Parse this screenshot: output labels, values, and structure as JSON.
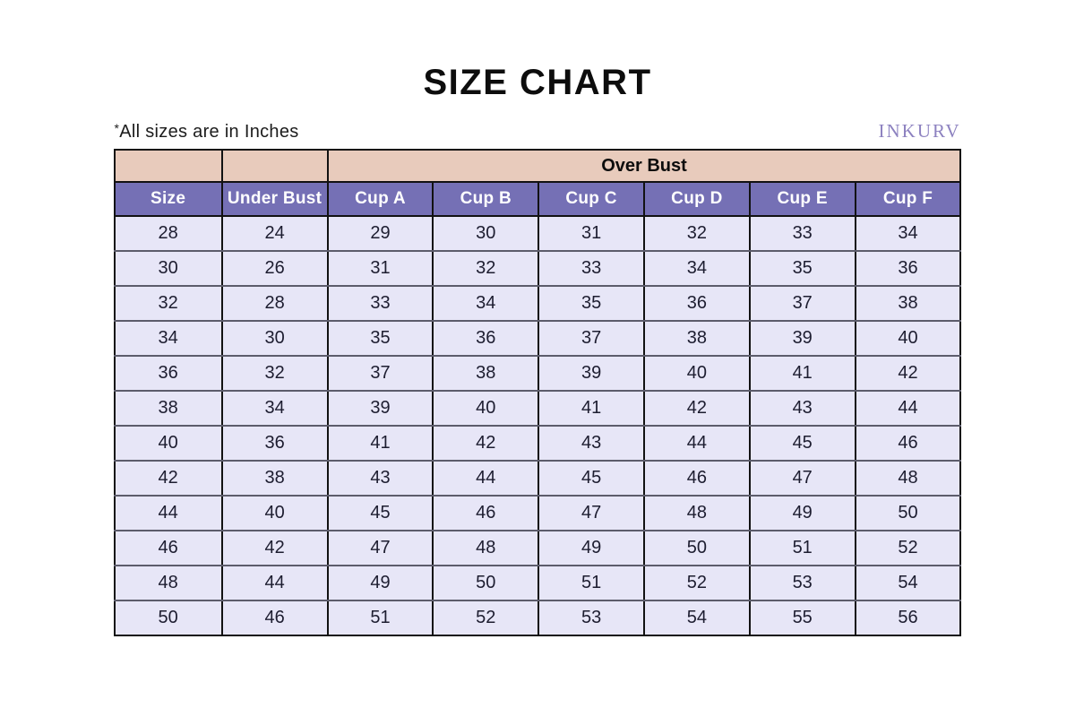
{
  "page": {
    "title": "SIZE CHART",
    "note_mark": "*",
    "note_text": "All sizes are in Inches",
    "brand": "INKURV"
  },
  "colors": {
    "group_header_bg": "#e8cbbc",
    "column_header_bg": "#7570b5",
    "column_header_text": "#ffffff",
    "cell_bg": "#e7e6f7",
    "brand_text": "#8d82c0",
    "vertical_border": "#121212",
    "row_separator": "#5c5c6b"
  },
  "chart_data": {
    "type": "table",
    "title": "SIZE CHART",
    "note": "*All sizes are in Inches",
    "brand": "INKURV",
    "group_header": {
      "label": "Over Bust",
      "spans_columns": [
        "Cup A",
        "Cup B",
        "Cup C",
        "Cup D",
        "Cup E",
        "Cup F"
      ]
    },
    "columns": [
      "Size",
      "Under Bust",
      "Cup A",
      "Cup B",
      "Cup C",
      "Cup D",
      "Cup E",
      "Cup F"
    ],
    "rows": [
      [
        28,
        24,
        29,
        30,
        31,
        32,
        33,
        34
      ],
      [
        30,
        26,
        31,
        32,
        33,
        34,
        35,
        36
      ],
      [
        32,
        28,
        33,
        34,
        35,
        36,
        37,
        38
      ],
      [
        34,
        30,
        35,
        36,
        37,
        38,
        39,
        40
      ],
      [
        36,
        32,
        37,
        38,
        39,
        40,
        41,
        42
      ],
      [
        38,
        34,
        39,
        40,
        41,
        42,
        43,
        44
      ],
      [
        40,
        36,
        41,
        42,
        43,
        44,
        45,
        46
      ],
      [
        42,
        38,
        43,
        44,
        45,
        46,
        47,
        48
      ],
      [
        44,
        40,
        45,
        46,
        47,
        48,
        49,
        50
      ],
      [
        46,
        42,
        47,
        48,
        49,
        50,
        51,
        52
      ],
      [
        48,
        44,
        49,
        50,
        51,
        52,
        53,
        54
      ],
      [
        50,
        46,
        51,
        52,
        53,
        54,
        55,
        56
      ]
    ],
    "units": "Inches"
  }
}
